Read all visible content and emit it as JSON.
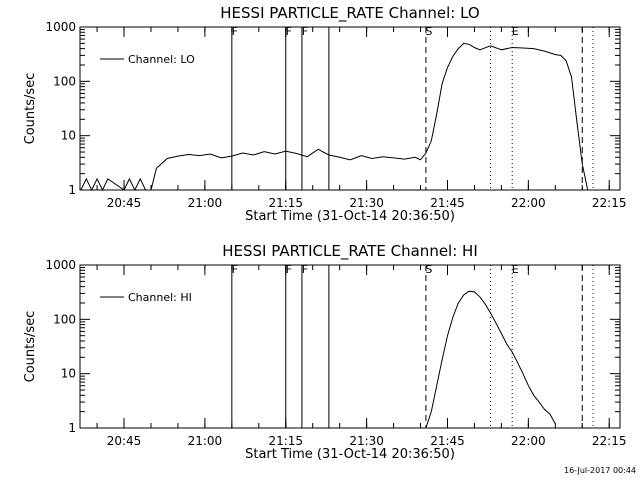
{
  "footer": {
    "timestamp": "16-Jul-2017 00:44"
  },
  "chart_data": [
    {
      "type": "line",
      "title": "HESSI PARTICLE_RATE Channel: LO",
      "xlabel": "Start Time (31-Oct-14 20:36:50)",
      "ylabel": "Counts/sec",
      "y_scale": "log",
      "xlim": [
        "20:36:50",
        "22:17:00"
      ],
      "ylim": [
        1,
        1000
      ],
      "x_ticks": [
        "20:45",
        "21:00",
        "21:15",
        "21:30",
        "21:45",
        "22:00",
        "22:15"
      ],
      "y_ticks": [
        "1",
        "10",
        "100",
        "1000"
      ],
      "legend": {
        "position": "top-left",
        "entries": [
          "Channel: LO"
        ]
      },
      "markers": [
        {
          "label": "F",
          "time": "21:05",
          "style": "solid"
        },
        {
          "label": "F",
          "time": "21:15",
          "style": "solid"
        },
        {
          "label": "F",
          "time": "21:18",
          "style": "solid"
        },
        {
          "label": "",
          "time": "21:23",
          "style": "solid"
        },
        {
          "label": "S",
          "time": "21:41",
          "style": "dashed"
        },
        {
          "label": "E",
          "time": "21:57",
          "style": "dotted"
        },
        {
          "label": "",
          "time": "21:53",
          "style": "dotted"
        },
        {
          "label": "",
          "time": "22:10",
          "style": "dashed"
        },
        {
          "label": "",
          "time": "22:12",
          "style": "dotted"
        }
      ],
      "series": [
        {
          "name": "Channel: LO",
          "x": [
            "20:37",
            "20:38",
            "20:39",
            "20:40",
            "20:41",
            "20:42",
            "20:45",
            "20:46",
            "20:47",
            "20:48",
            "20:49",
            "20:50",
            "20:51",
            "20:53",
            "20:55",
            "20:57",
            "20:59",
            "21:01",
            "21:03",
            "21:05",
            "21:07",
            "21:09",
            "21:11",
            "21:13",
            "21:15",
            "21:17",
            "21:19",
            "21:21",
            "21:23",
            "21:25",
            "21:27",
            "21:29",
            "21:31",
            "21:33",
            "21:35",
            "21:37",
            "21:39",
            "21:40",
            "21:41",
            "21:42",
            "21:43",
            "21:44",
            "21:45",
            "21:46",
            "21:47",
            "21:48",
            "21:49",
            "21:50",
            "21:51",
            "21:53",
            "21:55",
            "21:57",
            "21:59",
            "22:01",
            "22:03",
            "22:05",
            "22:06",
            "22:07",
            "22:08",
            "22:09",
            "22:10",
            "22:11"
          ],
          "y": [
            1.0,
            1.6,
            1.0,
            1.6,
            1.0,
            1.6,
            1.0,
            1.6,
            1.0,
            1.6,
            1.0,
            1.0,
            2.5,
            3.8,
            4.2,
            4.5,
            4.3,
            4.6,
            3.9,
            4.2,
            4.8,
            4.4,
            5.1,
            4.6,
            5.2,
            4.7,
            4.1,
            5.6,
            4.4,
            4.0,
            3.6,
            4.3,
            3.8,
            4.1,
            3.9,
            3.7,
            4.0,
            3.6,
            4.8,
            8,
            25,
            90,
            180,
            290,
            400,
            500,
            480,
            420,
            380,
            450,
            380,
            420,
            410,
            400,
            360,
            310,
            300,
            240,
            120,
            18,
            3,
            1
          ]
        }
      ]
    },
    {
      "type": "line",
      "title": "HESSI PARTICLE_RATE Channel: HI",
      "xlabel": "Start Time (31-Oct-14 20:36:50)",
      "ylabel": "Counts/sec",
      "y_scale": "log",
      "xlim": [
        "20:36:50",
        "22:17:00"
      ],
      "ylim": [
        1,
        1000
      ],
      "x_ticks": [
        "20:45",
        "21:00",
        "21:15",
        "21:30",
        "21:45",
        "22:00",
        "22:15"
      ],
      "y_ticks": [
        "1",
        "10",
        "100",
        "1000"
      ],
      "legend": {
        "position": "top-left",
        "entries": [
          "Channel: HI"
        ]
      },
      "markers": [
        {
          "label": "F",
          "time": "21:05",
          "style": "solid"
        },
        {
          "label": "F",
          "time": "21:15",
          "style": "solid"
        },
        {
          "label": "F",
          "time": "21:18",
          "style": "solid"
        },
        {
          "label": "",
          "time": "21:23",
          "style": "solid"
        },
        {
          "label": "S",
          "time": "21:41",
          "style": "dashed"
        },
        {
          "label": "E",
          "time": "21:57",
          "style": "dotted"
        },
        {
          "label": "",
          "time": "21:53",
          "style": "dotted"
        },
        {
          "label": "",
          "time": "22:10",
          "style": "dashed"
        },
        {
          "label": "",
          "time": "22:12",
          "style": "dotted"
        }
      ],
      "series": [
        {
          "name": "Channel: HI",
          "x": [
            "21:41",
            "21:42",
            "21:43",
            "21:44",
            "21:45",
            "21:46",
            "21:47",
            "21:48",
            "21:49",
            "21:50",
            "21:51",
            "21:52",
            "21:53",
            "21:54",
            "21:55",
            "21:56",
            "21:57",
            "21:58",
            "21:59",
            "22:00",
            "22:01",
            "22:02",
            "22:03",
            "22:04",
            "22:05"
          ],
          "y": [
            1,
            2,
            6,
            18,
            50,
            110,
            200,
            280,
            330,
            320,
            260,
            190,
            130,
            85,
            55,
            35,
            25,
            16,
            10,
            6,
            4,
            3,
            2.2,
            1.8,
            1.2
          ]
        }
      ]
    }
  ]
}
